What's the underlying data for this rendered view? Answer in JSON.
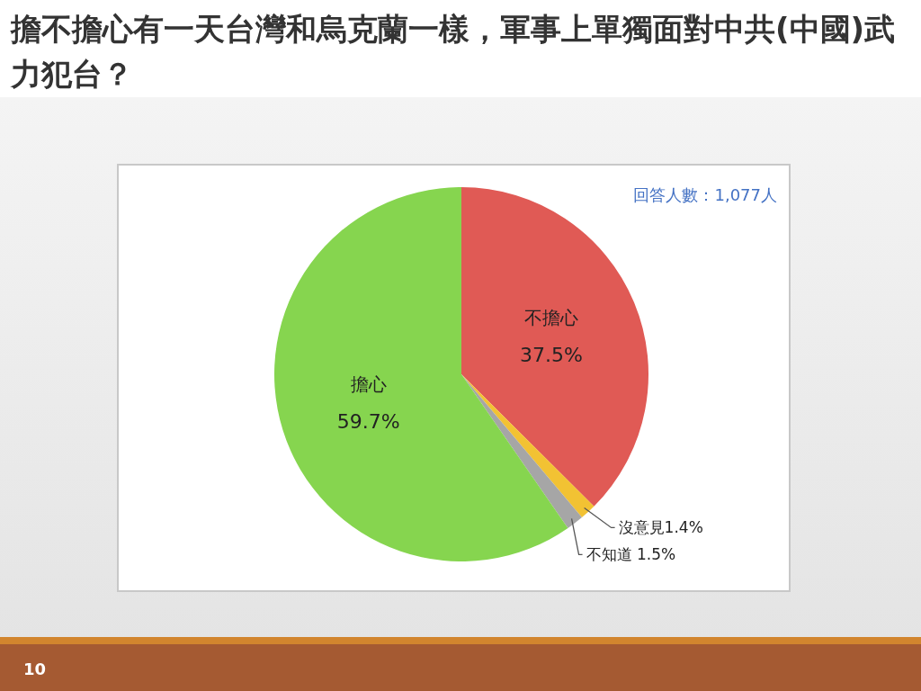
{
  "chart_data": {
    "type": "pie",
    "title": "擔不擔心有一天台灣和烏克蘭一樣，軍事上單獨面對中共(中國)武力犯台？",
    "categories": [
      "不擔心",
      "沒意見",
      "不知道",
      "擔心"
    ],
    "values": [
      37.5,
      1.4,
      1.5,
      59.7
    ],
    "value_labels": [
      "37.5%",
      "1.4%",
      "1.5%",
      "59.7%"
    ],
    "colors": [
      "#e05a55",
      "#f2c233",
      "#a6a6a6",
      "#86d54f"
    ],
    "annotations": [
      "回答人數：1,077人",
      "10"
    ]
  }
}
